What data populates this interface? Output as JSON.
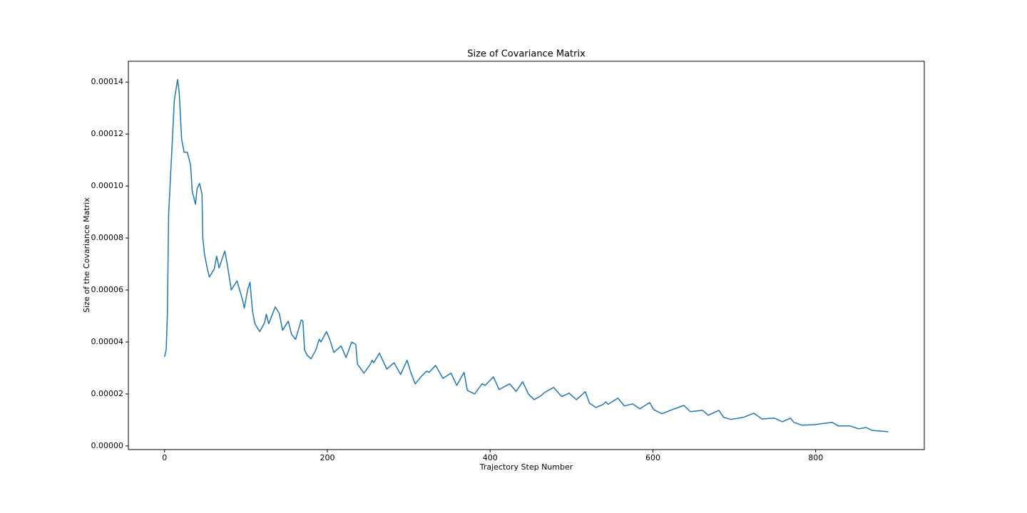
{
  "chart_data": {
    "type": "line",
    "title": "Size of Covariance Matrix",
    "x_label": "Trajectory Step Number",
    "y_label": "Size of the Covariance Matrix",
    "xlim": [
      -44.45,
      933.45
    ],
    "ylim": [
      -1.4e-06,
      0.000148
    ],
    "xticks": [
      0,
      200,
      400,
      600,
      800
    ],
    "yticks": [
      {
        "value": 0,
        "label": "0.00000"
      },
      {
        "value": 2e-05,
        "label": "0.00002"
      },
      {
        "value": 4e-05,
        "label": "0.00004"
      },
      {
        "value": 6e-05,
        "label": "0.00006"
      },
      {
        "value": 8e-05,
        "label": "0.00008"
      },
      {
        "value": 0.0001,
        "label": "0.00010"
      },
      {
        "value": 0.00012,
        "label": "0.00012"
      },
      {
        "value": 0.00014,
        "label": "0.00014"
      }
    ],
    "grid": false,
    "series": [
      {
        "color": "#1f77b4",
        "x": [
          0,
          2,
          3.5,
          5,
          9,
          12,
          16,
          18,
          21,
          24,
          28,
          32,
          34,
          38,
          40,
          43,
          46,
          47,
          49,
          52,
          55,
          61,
          64,
          67,
          74,
          77,
          82,
          89,
          96,
          98,
          102,
          105,
          108,
          111,
          117,
          123,
          125,
          128,
          136,
          141,
          145,
          152,
          156,
          161,
          168,
          170,
          172,
          175,
          180,
          186,
          190,
          192,
          199,
          203,
          208,
          217,
          223,
          230,
          235,
          237,
          245,
          253,
          255,
          257,
          264,
          273,
          282,
          290,
          298,
          302,
          308,
          315,
          322,
          325,
          333,
          342,
          352,
          359,
          368,
          372,
          381,
          390,
          394,
          404,
          411,
          424,
          432,
          440,
          447,
          454,
          462,
          467,
          478,
          488,
          497,
          506,
          517,
          522,
          530,
          539,
          542,
          545,
          557,
          565,
          575,
          584,
          596,
          601,
          611,
          624,
          638,
          646,
          661,
          668,
          681,
          687,
          696,
          711,
          724,
          734,
          749,
          759,
          769,
          773,
          783,
          799,
          820,
          828,
          842,
          853,
          862,
          869,
          889
        ],
        "values": [
          3.43e-05,
          3.7e-05,
          5.1e-05,
          8.9e-05,
          0.000114,
          0.000133,
          0.000141,
          0.000136,
          0.000118,
          0.000113,
          0.000113,
          0.000108,
          9.8e-05,
          9.3e-05,
          9.9e-05,
          0.000101,
          9.7e-05,
          8e-05,
          7.4e-05,
          6.9e-05,
          6.5e-05,
          6.8e-05,
          7.3e-05,
          6.85e-05,
          7.5e-05,
          7e-05,
          6e-05,
          6.35e-05,
          5.6e-05,
          5.3e-05,
          6e-05,
          6.3e-05,
          5.2e-05,
          4.7e-05,
          4.4e-05,
          4.75e-05,
          5.07e-05,
          4.7e-05,
          5.35e-05,
          5.1e-05,
          4.45e-05,
          4.8e-05,
          4.3e-05,
          4.1e-05,
          4.85e-05,
          4.8e-05,
          3.7e-05,
          3.5e-05,
          3.35e-05,
          3.7e-05,
          4.1e-05,
          4e-05,
          4.4e-05,
          4.1e-05,
          3.6e-05,
          3.85e-05,
          3.4e-05,
          4e-05,
          3.9e-05,
          3.15e-05,
          2.8e-05,
          3.15e-05,
          3.3e-05,
          3.2e-05,
          3.57e-05,
          2.96e-05,
          3.2e-05,
          2.75e-05,
          3.3e-05,
          2.88e-05,
          2.39e-05,
          2.66e-05,
          2.88e-05,
          2.83e-05,
          3.1e-05,
          2.6e-05,
          2.8e-05,
          2.33e-05,
          2.83e-05,
          2.14e-05,
          2e-05,
          2.39e-05,
          2.33e-05,
          2.66e-05,
          2.17e-05,
          2.39e-05,
          2.1e-05,
          2.47e-05,
          2e-05,
          1.78e-05,
          1.92e-05,
          2.06e-05,
          2.25e-05,
          1.9e-05,
          2.03e-05,
          1.78e-05,
          2.09e-05,
          1.65e-05,
          1.48e-05,
          1.6e-05,
          1.7e-05,
          1.6e-05,
          1.84e-05,
          1.54e-05,
          1.62e-05,
          1.43e-05,
          1.67e-05,
          1.4e-05,
          1.24e-05,
          1.4e-05,
          1.56e-05,
          1.32e-05,
          1.37e-05,
          1.18e-05,
          1.37e-05,
          1.1e-05,
          1.02e-05,
          1.1e-05,
          1.26e-05,
          1.04e-05,
          1.07e-05,
          9.3e-06,
          1.07e-05,
          9.1e-06,
          8e-06,
          8.2e-06,
          9.1e-06,
          7.7e-06,
          7.7e-06,
          6.6e-06,
          7.1e-06,
          6e-06,
          5.5e-06
        ]
      }
    ]
  }
}
